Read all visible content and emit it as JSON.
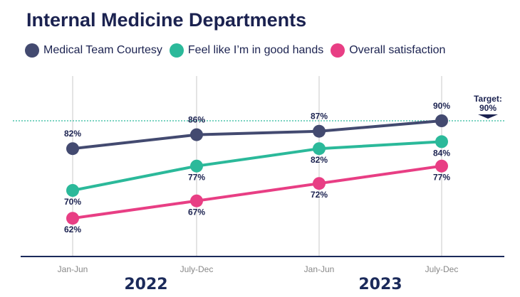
{
  "chart_data": {
    "type": "line",
    "title": "Internal Medicine Departments",
    "categories": [
      "Jan-Jun",
      "July-Dec",
      "Jan-Jun",
      "July-Dec"
    ],
    "year_labels": [
      "2022",
      "2023"
    ],
    "series": [
      {
        "name": "Medical Team Courtesy",
        "color": "#434a70",
        "values": [
          82,
          86,
          87,
          90
        ],
        "labels": [
          "82%",
          "86%",
          "87%",
          "90%"
        ],
        "label_pos": "above"
      },
      {
        "name": "Feel like I’m in good hands",
        "color": "#2bb99a",
        "values": [
          70,
          77,
          82,
          84
        ],
        "labels": [
          "70%",
          "77%",
          "82%",
          "84%"
        ],
        "label_pos": "below"
      },
      {
        "name": "Overall satisfaction",
        "color": "#e83e84",
        "values": [
          62,
          67,
          72,
          77
        ],
        "labels": [
          "62%",
          "67%",
          "72%",
          "77%"
        ],
        "label_pos": "below"
      }
    ],
    "target": {
      "value": 90,
      "label_line1": "Target:",
      "label_line2": "90%",
      "color": "#2bb99a"
    },
    "legend": "top-left",
    "grid": "vertical"
  }
}
